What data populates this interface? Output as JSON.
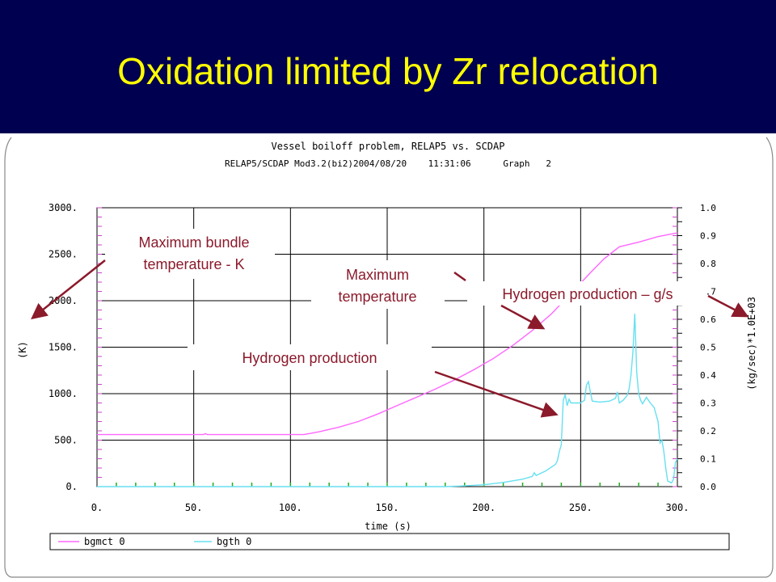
{
  "slide": {
    "title": "Oxidation limited by Zr relocation"
  },
  "colors": {
    "title_bg": "#000050",
    "title_text": "#ffff00",
    "annotation": "#8b1a2b",
    "series_temp": "#ff66ff",
    "series_h2": "#66e0f0"
  },
  "chart_data": {
    "type": "line",
    "title": "Vessel boiloff problem, RELAP5 vs. SCDAP",
    "subtitle": "RELAP5/SCDAP Mod3.2(bi2)2004/08/20    11:31:06      Graph   2",
    "xlabel": "time (s)",
    "ylabel_left": "(K)",
    "ylabel_right": "(kg/sec)*1.0E+03",
    "xlim": [
      0,
      300
    ],
    "ylim_left": [
      0,
      3000
    ],
    "ylim_right": [
      0,
      1.0
    ],
    "x_ticks": [
      "0.",
      "50.",
      "100.",
      "150.",
      "200.",
      "250.",
      "300."
    ],
    "y_left_ticks": [
      "0.",
      "500.",
      "1000.",
      "1500.",
      "2000.",
      "2500.",
      "3000."
    ],
    "y_right_ticks": [
      "0.0",
      "0.1",
      "0.2",
      "0.3",
      "0.4",
      "0.5",
      "0.6",
      "0.7",
      "0.8",
      "0.9",
      "1.0"
    ],
    "grid": true,
    "legend_position": "bottom",
    "series": [
      {
        "name": "bgmct 0",
        "axis": "left",
        "points": [
          [
            0,
            560
          ],
          [
            55,
            560
          ],
          [
            56,
            570
          ],
          [
            57,
            560
          ],
          [
            107,
            560
          ],
          [
            115,
            590
          ],
          [
            125,
            640
          ],
          [
            135,
            700
          ],
          [
            145,
            780
          ],
          [
            155,
            870
          ],
          [
            165,
            960
          ],
          [
            175,
            1050
          ],
          [
            185,
            1150
          ],
          [
            195,
            1260
          ],
          [
            205,
            1380
          ],
          [
            215,
            1520
          ],
          [
            225,
            1680
          ],
          [
            235,
            1860
          ],
          [
            245,
            2080
          ],
          [
            255,
            2300
          ],
          [
            262,
            2450
          ],
          [
            270,
            2580
          ],
          [
            280,
            2630
          ],
          [
            290,
            2690
          ],
          [
            300,
            2730
          ]
        ]
      },
      {
        "name": "bgth 0",
        "axis": "left",
        "points": [
          [
            0,
            0
          ],
          [
            180,
            0
          ],
          [
            190,
            8
          ],
          [
            200,
            20
          ],
          [
            210,
            45
          ],
          [
            220,
            80
          ],
          [
            225,
            110
          ],
          [
            226,
            150
          ],
          [
            227,
            120
          ],
          [
            232,
            170
          ],
          [
            237,
            240
          ],
          [
            238,
            280
          ],
          [
            239,
            380
          ],
          [
            240,
            450
          ],
          [
            241,
            930
          ],
          [
            242,
            990
          ],
          [
            243,
            870
          ],
          [
            244,
            940
          ],
          [
            245,
            900
          ],
          [
            250,
            900
          ],
          [
            252,
            930
          ],
          [
            253,
            1090
          ],
          [
            254,
            1130
          ],
          [
            255,
            1020
          ],
          [
            256,
            920
          ],
          [
            260,
            910
          ],
          [
            265,
            920
          ],
          [
            268,
            950
          ],
          [
            269,
            1020
          ],
          [
            270,
            900
          ],
          [
            272,
            930
          ],
          [
            274,
            980
          ],
          [
            275,
            1050
          ],
          [
            276,
            1200
          ],
          [
            277,
            1450
          ],
          [
            278,
            1860
          ],
          [
            279,
            1230
          ],
          [
            280,
            1000
          ],
          [
            281,
            930
          ],
          [
            282,
            890
          ],
          [
            284,
            960
          ],
          [
            286,
            900
          ],
          [
            288,
            850
          ],
          [
            290,
            700
          ],
          [
            291,
            470
          ],
          [
            292,
            500
          ],
          [
            293,
            380
          ],
          [
            294,
            200
          ],
          [
            295,
            60
          ],
          [
            297,
            40
          ],
          [
            298,
            80
          ],
          [
            299,
            260
          ],
          [
            300,
            300
          ]
        ]
      }
    ],
    "annotations": [
      {
        "line1": "Maximum bundle",
        "line2": "temperature - K"
      },
      {
        "line1": "Maximum",
        "line2": "temperature"
      },
      {
        "line1": "Hydrogen production – g/s",
        "line2": ""
      },
      {
        "line1": "Hydrogen production",
        "line2": ""
      }
    ]
  }
}
